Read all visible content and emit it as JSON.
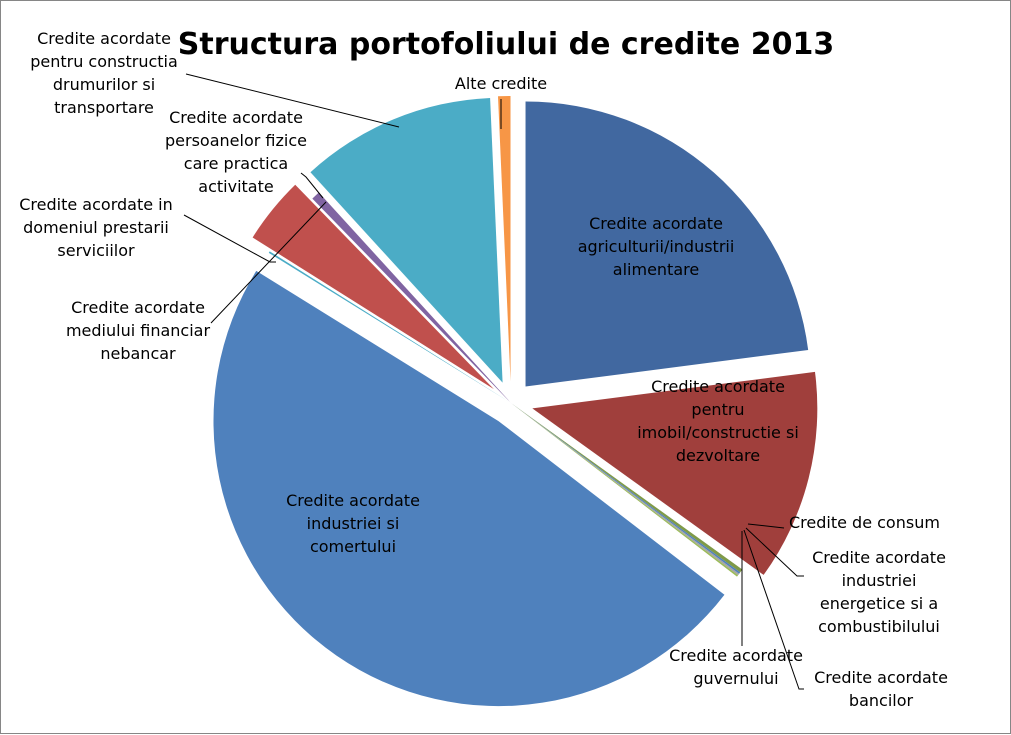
{
  "chart_data": {
    "type": "pie",
    "title": "Structura portofoliului de credite 2013",
    "start_angle_deg": 0,
    "slices": [
      {
        "label_lines": [
          "Credite acordate",
          "agriculturii/industrii",
          "alimentare"
        ],
        "value": 23.0,
        "color": "#4168A0",
        "exploded": true,
        "label_pos": "inside"
      },
      {
        "label_lines": [
          "Credite acordate",
          "pentru",
          "imobil/constructie si",
          "dezvoltare"
        ],
        "value": 12.0,
        "color": "#A03F3C",
        "exploded": true,
        "label_pos": "inside"
      },
      {
        "label_lines": [
          "Credite de consum"
        ],
        "value": 0.2,
        "color": "#7F9A48",
        "exploded": false,
        "label_pos": "outside"
      },
      {
        "label_lines": [
          "Credite acordate",
          "industriei",
          "energetice si a",
          "combustibilului"
        ],
        "value": 0.1,
        "color": "#4F81BD",
        "exploded": false,
        "label_pos": "outside"
      },
      {
        "label_lines": [
          "Credite acordate",
          "bancilor"
        ],
        "value": 0.1,
        "color": "#A5A5A5",
        "exploded": false,
        "label_pos": "outside"
      },
      {
        "label_lines": [
          "Credite acordate",
          "guvernului"
        ],
        "value": 0.1,
        "color": "#9BBB59",
        "exploded": false,
        "label_pos": "outside"
      },
      {
        "label_lines": [
          "Credite acordate",
          "industriei  si",
          "comertului"
        ],
        "value": 48.5,
        "color": "#4F81BD",
        "exploded": true,
        "label_pos": "inside"
      },
      {
        "label_lines": [
          "Credite acordate",
          "mediului financiar",
          "nebancar"
        ],
        "value": 0.1,
        "color": "#4BACC6",
        "exploded": false,
        "label_pos": "outside"
      },
      {
        "label_lines": [
          "Credite acordate in",
          "domeniul prestarii",
          "serviciilor"
        ],
        "value": 3.8,
        "color": "#C0504D",
        "exploded": true,
        "label_pos": "outside"
      },
      {
        "label_lines": [
          "Credite acordate",
          "persoanelor fizice",
          "care practica",
          "activitate"
        ],
        "value": 0.5,
        "color": "#8064A2",
        "exploded": false,
        "label_pos": "outside"
      },
      {
        "label_lines": [
          "Credite acordate",
          "pentru constructia",
          "drumurilor si",
          "transportare"
        ],
        "value": 11.1,
        "color": "#4BACC6",
        "exploded": true,
        "label_pos": "outside"
      },
      {
        "label_lines": [
          "Alte credite"
        ],
        "value": 0.7,
        "color": "#F79646",
        "exploded": true,
        "label_pos": "outside"
      }
    ]
  }
}
